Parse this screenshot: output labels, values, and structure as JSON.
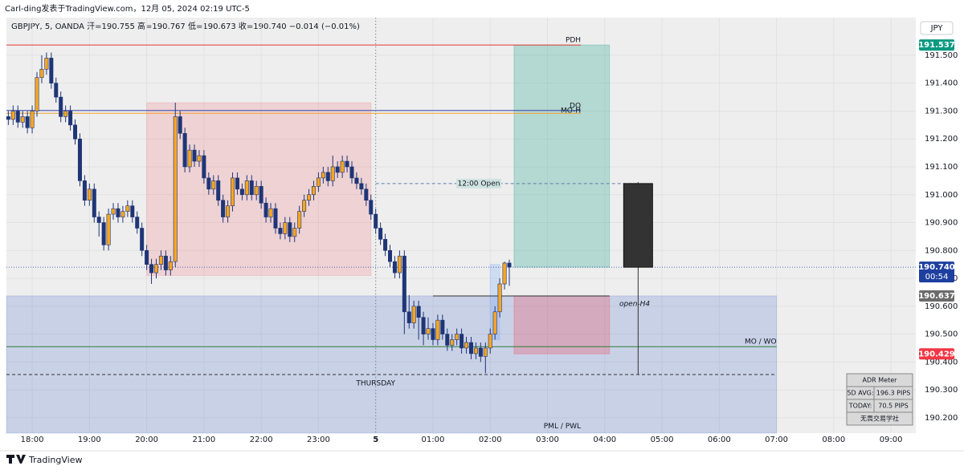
{
  "chart_data": {
    "type": "candlestick",
    "header": "Carl-ding发表于TradingView.com，12月 05, 2024 02:19 UTC-5",
    "title": "GBPJPY, 5, OANDA 开=190.755 高=190.767 低=190.673 收=190.740 −0.014 (−0.01%)",
    "currency": "JPY",
    "footer": "TradingView",
    "x": [
      "17:35",
      "17:40",
      "17:45",
      "17:50",
      "17:55",
      "18:00",
      "18:05",
      "18:10",
      "18:15",
      "18:20",
      "18:25",
      "18:30",
      "18:35",
      "18:40",
      "18:45",
      "18:50",
      "18:55",
      "19:00",
      "19:05",
      "19:10",
      "19:15",
      "19:20",
      "19:25",
      "19:30",
      "19:35",
      "19:40",
      "19:45",
      "19:50",
      "19:55",
      "20:00",
      "20:05",
      "20:10",
      "20:15",
      "20:20",
      "20:25",
      "20:30",
      "20:35",
      "20:40",
      "20:45",
      "20:50",
      "20:55",
      "21:00",
      "21:05",
      "21:10",
      "21:15",
      "21:20",
      "21:25",
      "21:30",
      "21:35",
      "21:40",
      "21:45",
      "21:50",
      "21:55",
      "22:00",
      "22:05",
      "22:10",
      "22:15",
      "22:20",
      "22:25",
      "22:30",
      "22:35",
      "22:40",
      "22:45",
      "22:50",
      "22:55",
      "23:00",
      "23:05",
      "23:10",
      "23:15",
      "23:20",
      "23:25",
      "23:30",
      "23:35",
      "23:40",
      "23:45",
      "23:50",
      "23:55",
      "00:00",
      "00:05",
      "00:10",
      "00:15",
      "00:20",
      "00:25",
      "00:30",
      "00:35",
      "00:40",
      "00:45",
      "00:50",
      "00:55",
      "01:00",
      "01:05",
      "01:10",
      "01:15",
      "01:20",
      "01:25",
      "01:30",
      "01:35",
      "01:40",
      "01:45",
      "01:50",
      "01:55",
      "02:00",
      "02:05",
      "02:10",
      "02:15",
      "02:20"
    ],
    "open": [
      191.28,
      191.27,
      191.3,
      191.26,
      191.28,
      191.24,
      191.3,
      191.42,
      191.45,
      191.49,
      191.4,
      191.35,
      191.28,
      191.3,
      191.25,
      191.2,
      191.05,
      190.98,
      191.02,
      190.92,
      190.9,
      190.82,
      190.93,
      190.95,
      190.92,
      190.94,
      190.96,
      190.92,
      190.88,
      190.8,
      190.75,
      190.72,
      190.75,
      190.78,
      190.73,
      190.76,
      191.28,
      191.22,
      191.1,
      191.16,
      191.12,
      191.14,
      191.06,
      191.02,
      191.05,
      190.98,
      190.92,
      190.96,
      191.06,
      191.02,
      191.0,
      191.05,
      191.0,
      191.03,
      190.97,
      190.92,
      190.95,
      190.88,
      190.86,
      190.9,
      190.85,
      190.88,
      190.94,
      190.98,
      191.0,
      191.03,
      191.06,
      191.08,
      191.05,
      191.1,
      191.08,
      191.12,
      191.1,
      191.06,
      191.04,
      191.02,
      190.98,
      190.93,
      190.88,
      190.84,
      190.8,
      190.76,
      190.72,
      190.78,
      190.58,
      190.54,
      190.6,
      190.56,
      190.5,
      190.52,
      190.48,
      190.55,
      190.5,
      190.46,
      190.48,
      190.5,
      190.45,
      190.47,
      190.43,
      190.45,
      190.42,
      190.45,
      190.5,
      190.58,
      190.68,
      190.755
    ],
    "high": [
      191.3,
      191.32,
      191.32,
      191.3,
      191.3,
      191.32,
      191.44,
      191.5,
      191.51,
      191.51,
      191.42,
      191.37,
      191.32,
      191.32,
      191.27,
      191.22,
      191.07,
      191.04,
      191.04,
      190.94,
      190.92,
      190.95,
      190.97,
      190.97,
      190.96,
      190.98,
      190.98,
      190.94,
      190.9,
      190.82,
      190.77,
      190.77,
      190.8,
      190.8,
      190.78,
      191.33,
      191.3,
      191.24,
      191.18,
      191.18,
      191.16,
      191.16,
      191.08,
      191.07,
      191.07,
      191.0,
      190.98,
      191.08,
      191.08,
      191.04,
      191.07,
      191.07,
      191.05,
      191.05,
      190.99,
      190.97,
      190.97,
      190.9,
      190.92,
      190.92,
      190.9,
      190.96,
      191.0,
      191.02,
      191.05,
      191.08,
      191.1,
      191.1,
      191.14,
      191.12,
      191.14,
      191.14,
      191.12,
      191.08,
      191.06,
      191.04,
      191.0,
      190.95,
      190.9,
      190.86,
      190.82,
      190.78,
      190.8,
      190.8,
      190.64,
      190.62,
      190.62,
      190.58,
      190.56,
      190.54,
      190.57,
      190.57,
      190.52,
      190.5,
      190.52,
      190.52,
      190.49,
      190.49,
      190.47,
      190.47,
      190.47,
      190.52,
      190.6,
      190.7,
      190.76,
      190.767
    ],
    "low": [
      191.25,
      191.25,
      191.24,
      191.24,
      191.22,
      191.22,
      191.28,
      191.4,
      191.43,
      191.38,
      191.33,
      191.26,
      191.26,
      191.23,
      191.18,
      191.03,
      190.96,
      190.96,
      190.9,
      190.85,
      190.8,
      190.8,
      190.91,
      190.9,
      190.9,
      190.92,
      190.9,
      190.86,
      190.78,
      190.73,
      190.68,
      190.7,
      190.73,
      190.71,
      190.71,
      190.74,
      191.2,
      191.08,
      191.08,
      191.1,
      191.1,
      191.04,
      191.0,
      191.0,
      190.96,
      190.9,
      190.9,
      190.94,
      191.0,
      190.98,
      190.98,
      190.98,
      190.98,
      190.95,
      190.9,
      190.9,
      190.86,
      190.84,
      190.84,
      190.83,
      190.83,
      190.86,
      190.92,
      190.96,
      190.98,
      191.01,
      191.04,
      191.03,
      191.03,
      191.06,
      191.06,
      191.08,
      191.04,
      191.02,
      191.0,
      190.96,
      190.91,
      190.86,
      190.82,
      190.78,
      190.74,
      190.7,
      190.7,
      190.5,
      190.52,
      190.52,
      190.48,
      190.46,
      190.48,
      190.46,
      190.46,
      190.48,
      190.44,
      190.44,
      190.46,
      190.43,
      190.43,
      190.41,
      190.41,
      190.4,
      190.36,
      190.43,
      190.48,
      190.56,
      190.66,
      190.673
    ],
    "close": [
      191.27,
      191.3,
      191.26,
      191.28,
      191.24,
      191.3,
      191.42,
      191.45,
      191.49,
      191.4,
      191.35,
      191.28,
      191.3,
      191.25,
      191.2,
      191.05,
      190.98,
      191.02,
      190.92,
      190.9,
      190.82,
      190.93,
      190.95,
      190.92,
      190.94,
      190.96,
      190.92,
      190.88,
      190.8,
      190.75,
      190.72,
      190.75,
      190.78,
      190.73,
      190.76,
      191.28,
      191.22,
      191.1,
      191.16,
      191.12,
      191.14,
      191.06,
      191.02,
      191.05,
      190.98,
      190.92,
      190.96,
      191.06,
      191.02,
      191.0,
      191.05,
      191.0,
      191.03,
      190.97,
      190.92,
      190.95,
      190.88,
      190.86,
      190.9,
      190.85,
      190.88,
      190.94,
      190.98,
      191.0,
      191.03,
      191.06,
      191.08,
      191.05,
      191.1,
      191.08,
      191.12,
      191.1,
      191.06,
      191.04,
      191.02,
      190.98,
      190.93,
      190.88,
      190.84,
      190.8,
      190.76,
      190.72,
      190.78,
      190.58,
      190.54,
      190.6,
      190.56,
      190.5,
      190.52,
      190.48,
      190.55,
      190.5,
      190.46,
      190.48,
      190.5,
      190.45,
      190.47,
      190.43,
      190.45,
      190.42,
      190.45,
      190.5,
      190.58,
      190.68,
      190.755,
      190.74
    ],
    "up_color": "#f5a623",
    "down_color": "#1f3576",
    "xlim": [
      "17:33",
      "09:26"
    ],
    "xticks": [
      "18:00",
      "19:00",
      "20:00",
      "21:00",
      "22:00",
      "23:00",
      "5",
      "01:00",
      "02:00",
      "03:00",
      "04:00",
      "05:00",
      "06:00",
      "07:00",
      "08:00",
      "09:00"
    ],
    "ylim": [
      190.145,
      191.635
    ],
    "yticks": [
      {
        "value": 190.2,
        "label": "190.200"
      },
      {
        "value": 190.3,
        "label": "190.300"
      },
      {
        "value": 190.4,
        "label": "190.400"
      },
      {
        "value": 190.5,
        "label": "190.500"
      },
      {
        "value": 190.6,
        "label": "190.600"
      },
      {
        "value": 190.7,
        "label": "190.700"
      },
      {
        "value": 190.8,
        "label": "190.800"
      },
      {
        "value": 190.9,
        "label": "190.900"
      },
      {
        "value": 191.0,
        "label": "191.000"
      },
      {
        "value": 191.1,
        "label": "191.100"
      },
      {
        "value": 191.2,
        "label": "191.200"
      },
      {
        "value": 191.3,
        "label": "191.300"
      },
      {
        "value": 191.4,
        "label": "191.400"
      },
      {
        "value": 191.5,
        "label": "191.500"
      }
    ],
    "grid": true,
    "zones": [
      {
        "from": "20:00",
        "to": "23:55",
        "top": 191.33,
        "bottom": 190.71,
        "color": "#f2364526"
      },
      {
        "from": "17:33",
        "to": "07:00",
        "top": 190.637,
        "bottom": 190.145,
        "color": "#4a6cd03a"
      },
      {
        "from": "02:25",
        "to": "04:05",
        "top": 191.537,
        "bottom": 190.74,
        "color": "#08998140"
      },
      {
        "from": "02:25",
        "to": "04:05",
        "top": 190.637,
        "bottom": 190.429,
        "color": "#f2364540"
      },
      {
        "from": "02:00",
        "to": "02:10",
        "top": 190.75,
        "bottom": 190.48,
        "color": "#6fa8ff40"
      }
    ],
    "levels": [
      {
        "label": "PDH",
        "price": 191.537,
        "from": "17:33",
        "to": "03:35",
        "color": "#e53935"
      },
      {
        "label": "DO",
        "price": 191.302,
        "from": "17:33",
        "to": "03:35",
        "color": "#3949ab"
      },
      {
        "label": "MO-H",
        "price": 191.292,
        "from": "17:33",
        "to": "03:35",
        "color": "#f0a030"
      },
      {
        "label": "12:00 Open",
        "price": 191.04,
        "from": "00:00",
        "to": "04:35",
        "color": "#5b7fa8",
        "dash": true
      },
      {
        "label": "open-H4",
        "price": 190.637,
        "from": "01:00",
        "to": "04:05",
        "color": "#333333"
      },
      {
        "label": "MO / WO",
        "price": 190.455,
        "from": "17:33",
        "to": "07:00",
        "color": "#2e7d32"
      },
      {
        "label": "THURSDAY",
        "price": 190.355,
        "from": "17:33",
        "to": "07:00",
        "color": "#333333",
        "dash": true
      },
      {
        "label": "PML / PWL",
        "price": 190.17,
        "color": "#2e7d32"
      }
    ],
    "htf_candle": {
      "x": "04:35",
      "open": 191.04,
      "high": 191.045,
      "low": 190.355,
      "close": 190.74,
      "color": "#333333"
    },
    "price_tags": [
      {
        "value": 191.537,
        "label": "191.537",
        "color": "#089981"
      },
      {
        "value": 190.74,
        "label": "190.740",
        "countdown": "00:54",
        "color": "#1e3fa0"
      },
      {
        "value": 190.637,
        "label": "190.637",
        "color": "#6b6b6b"
      },
      {
        "value": 190.429,
        "label": "190.429",
        "color": "#f23645"
      }
    ],
    "adr": {
      "title": "ADR Meter",
      "rows": [
        [
          "5D AVG:",
          "196.3 PIPS"
        ],
        [
          "TODAY:",
          "70.5 PIPS"
        ]
      ],
      "footer": "无畏交易学社"
    }
  }
}
